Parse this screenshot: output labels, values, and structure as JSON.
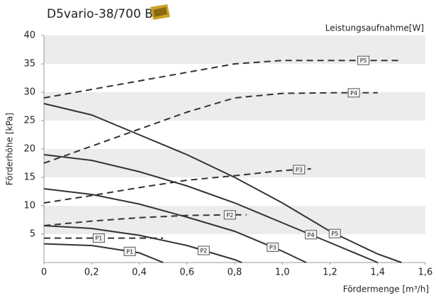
{
  "chart_data": {
    "type": "line",
    "title": "D5vario-38/700 B",
    "power_label": "Leistungsaufnahme[W]",
    "y_label": "Förderhöhe [kPa]",
    "x_label": "Fördermenge [m³/h]",
    "xlim": [
      0,
      1.6
    ],
    "ylim": [
      0,
      40
    ],
    "xticks": [
      0,
      {
        "value": 0.2,
        "label": "0,2"
      },
      {
        "value": 0.4,
        "label": "0,4"
      },
      {
        "value": 0.6,
        "label": "0,6"
      },
      {
        "value": 0.8,
        "label": "0,8"
      },
      {
        "value": 1.0,
        "label": "1,0"
      },
      {
        "value": 1.2,
        "label": "1,2"
      },
      {
        "value": 1.4,
        "label": "1,4"
      },
      {
        "value": 1.6,
        "label": "1,6"
      }
    ],
    "yticks": [
      5,
      10,
      15,
      20,
      25,
      30,
      35,
      40
    ],
    "grid": "bands",
    "color": "#333333",
    "series": [
      {
        "name": "P5",
        "style": "solid",
        "x": [
          0,
          0.2,
          0.4,
          0.6,
          0.8,
          1.0,
          1.2,
          1.4,
          1.5
        ],
        "values": [
          28,
          26,
          22.5,
          19,
          15,
          10.5,
          5.5,
          1.5,
          0
        ]
      },
      {
        "name": "P4",
        "style": "solid",
        "x": [
          0,
          0.2,
          0.4,
          0.6,
          0.8,
          1.0,
          1.2,
          1.4
        ],
        "values": [
          19,
          18,
          16,
          13.5,
          10.5,
          7,
          3.5,
          0
        ]
      },
      {
        "name": "P3",
        "style": "solid",
        "x": [
          0,
          0.2,
          0.4,
          0.6,
          0.8,
          1.0,
          1.1
        ],
        "values": [
          13,
          12,
          10.3,
          8,
          5.5,
          2,
          0
        ]
      },
      {
        "name": "P2",
        "style": "solid",
        "x": [
          0,
          0.2,
          0.4,
          0.6,
          0.8,
          0.83
        ],
        "values": [
          6.5,
          6,
          4.8,
          3,
          0.5,
          0
        ]
      },
      {
        "name": "P1",
        "style": "solid",
        "x": [
          0,
          0.2,
          0.4,
          0.5
        ],
        "values": [
          3.3,
          3,
          1.7,
          0
        ]
      },
      {
        "name": "P5",
        "style": "dashed",
        "x": [
          0,
          0.2,
          0.4,
          0.6,
          0.8,
          1.0,
          1.2,
          1.5
        ],
        "values": [
          29,
          30.5,
          32,
          33.5,
          35,
          35.6,
          35.6,
          35.6
        ]
      },
      {
        "name": "P4",
        "style": "dashed",
        "x": [
          0,
          0.2,
          0.4,
          0.6,
          0.8,
          1.0,
          1.2,
          1.4
        ],
        "values": [
          17.5,
          20.5,
          23.5,
          26.5,
          29,
          29.8,
          29.9,
          29.9
        ]
      },
      {
        "name": "P3",
        "style": "dashed",
        "x": [
          0,
          0.2,
          0.4,
          0.6,
          0.8,
          1.0,
          1.12
        ],
        "values": [
          10.5,
          11.8,
          13.2,
          14.5,
          15.3,
          16.2,
          16.5
        ]
      },
      {
        "name": "P2",
        "style": "dashed",
        "x": [
          0,
          0.2,
          0.4,
          0.6,
          0.8,
          0.85
        ],
        "values": [
          6.5,
          7.3,
          7.9,
          8.3,
          8.4,
          8.4
        ]
      },
      {
        "name": "P1",
        "style": "dashed",
        "x": [
          0,
          0.5
        ],
        "values": [
          4.3,
          4.3
        ]
      }
    ]
  }
}
